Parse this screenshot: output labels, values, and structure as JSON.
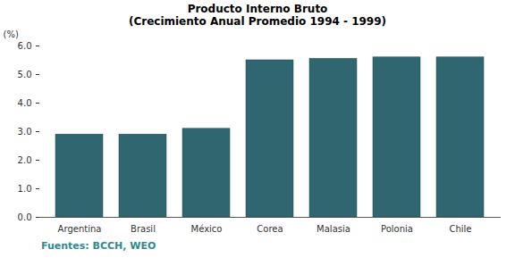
{
  "chart_data": {
    "type": "bar",
    "title": "Producto Interno Bruto",
    "subtitle": "(Crecimiento Anual Promedio 1994 - 1999)",
    "y_label": "(%)",
    "caption": "Fuentes: BCCH, WEO",
    "categories": [
      "Argentina",
      "Brasil",
      "México",
      "Corea",
      "Malasia",
      "Polonia",
      "Chile"
    ],
    "values": [
      2.9,
      2.9,
      3.1,
      5.5,
      5.55,
      5.6,
      5.6
    ],
    "color": "#2f6670",
    "ylim": [
      0,
      6
    ],
    "yticks": [
      {
        "value": 0,
        "label": "0.0"
      },
      {
        "value": 1,
        "label": "1.0"
      },
      {
        "value": 2,
        "label": "2.0"
      },
      {
        "value": 3,
        "label": "3.0"
      },
      {
        "value": 4,
        "label": "4.0"
      },
      {
        "value": 5,
        "label": "5.0"
      },
      {
        "value": 6,
        "label": "6.0"
      }
    ],
    "grid": false
  }
}
